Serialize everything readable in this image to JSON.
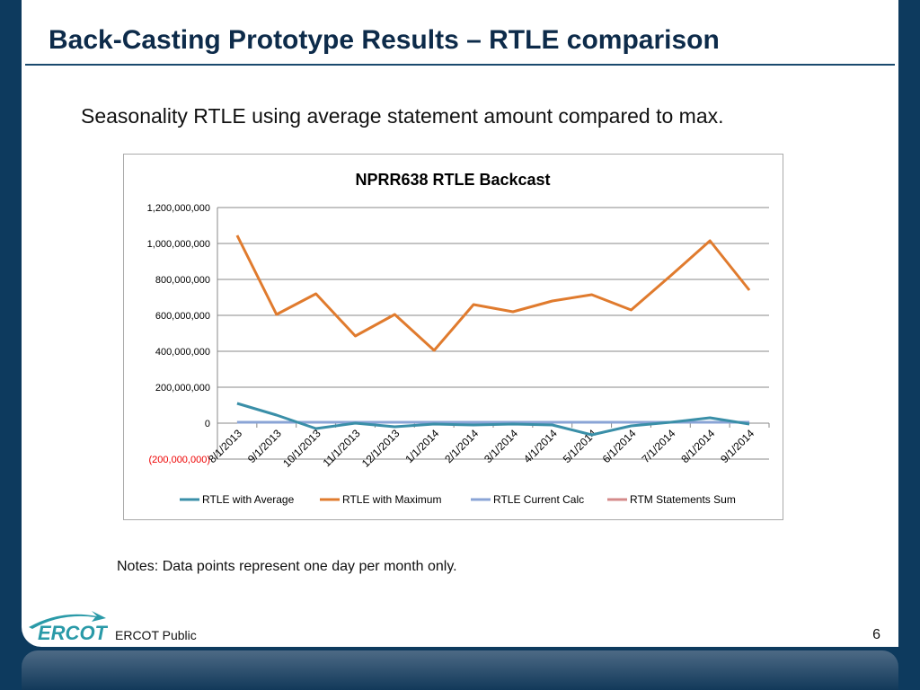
{
  "header": {
    "title": "Back-Casting Prototype Results – RTLE comparison"
  },
  "subtitle": "Seasonality RTLE using average statement amount compared to max.",
  "notes": "Notes: Data points represent one day per month only.",
  "footer": {
    "label": "ERCOT Public",
    "page": "6",
    "logo": "ERCOT"
  },
  "chart_data": {
    "type": "line",
    "title": "NPRR638 RTLE Backcast",
    "categories": [
      "8/1/2013",
      "9/1/2013",
      "10/1/2013",
      "11/1/2013",
      "12/1/2013",
      "1/1/2014",
      "2/1/2014",
      "3/1/2014",
      "4/1/2014",
      "5/1/2014",
      "6/1/2014",
      "7/1/2014",
      "8/1/2014",
      "9/1/2014"
    ],
    "ylim": [
      -200000000,
      1200000000
    ],
    "yticks": [
      -200000000,
      0,
      200000000,
      400000000,
      600000000,
      800000000,
      1000000000,
      1200000000
    ],
    "ytick_labels": [
      "(200,000,000)",
      "0",
      "200,000,000",
      "400,000,000",
      "600,000,000",
      "800,000,000",
      "1,000,000,000",
      "1,200,000,000"
    ],
    "grid": true,
    "legend": "bottom",
    "series": [
      {
        "name": "RTLE with Average",
        "color": "#3a8fa8",
        "values": [
          110000000,
          45000000,
          -30000000,
          0,
          -20000000,
          -5000000,
          -10000000,
          -5000000,
          -10000000,
          -65000000,
          -15000000,
          5000000,
          30000000,
          -5000000
        ]
      },
      {
        "name": "RTLE with Maximum",
        "color": "#e07b2e",
        "values": [
          1045000000,
          605000000,
          720000000,
          485000000,
          605000000,
          405000000,
          660000000,
          620000000,
          680000000,
          715000000,
          630000000,
          820000000,
          1015000000,
          740000000
        ]
      },
      {
        "name": "RTLE Current Calc",
        "color": "#8aa4d6",
        "values": [
          5000000,
          5000000,
          5000000,
          5000000,
          5000000,
          5000000,
          5000000,
          5000000,
          5000000,
          5000000,
          5000000,
          5000000,
          5000000,
          5000000
        ]
      },
      {
        "name": "RTM Statements Sum",
        "color": "#d48a8a",
        "values": [
          5000000,
          5000000,
          5000000,
          5000000,
          5000000,
          5000000,
          5000000,
          5000000,
          5000000,
          5000000,
          5000000,
          5000000,
          5000000,
          5000000
        ]
      }
    ]
  }
}
